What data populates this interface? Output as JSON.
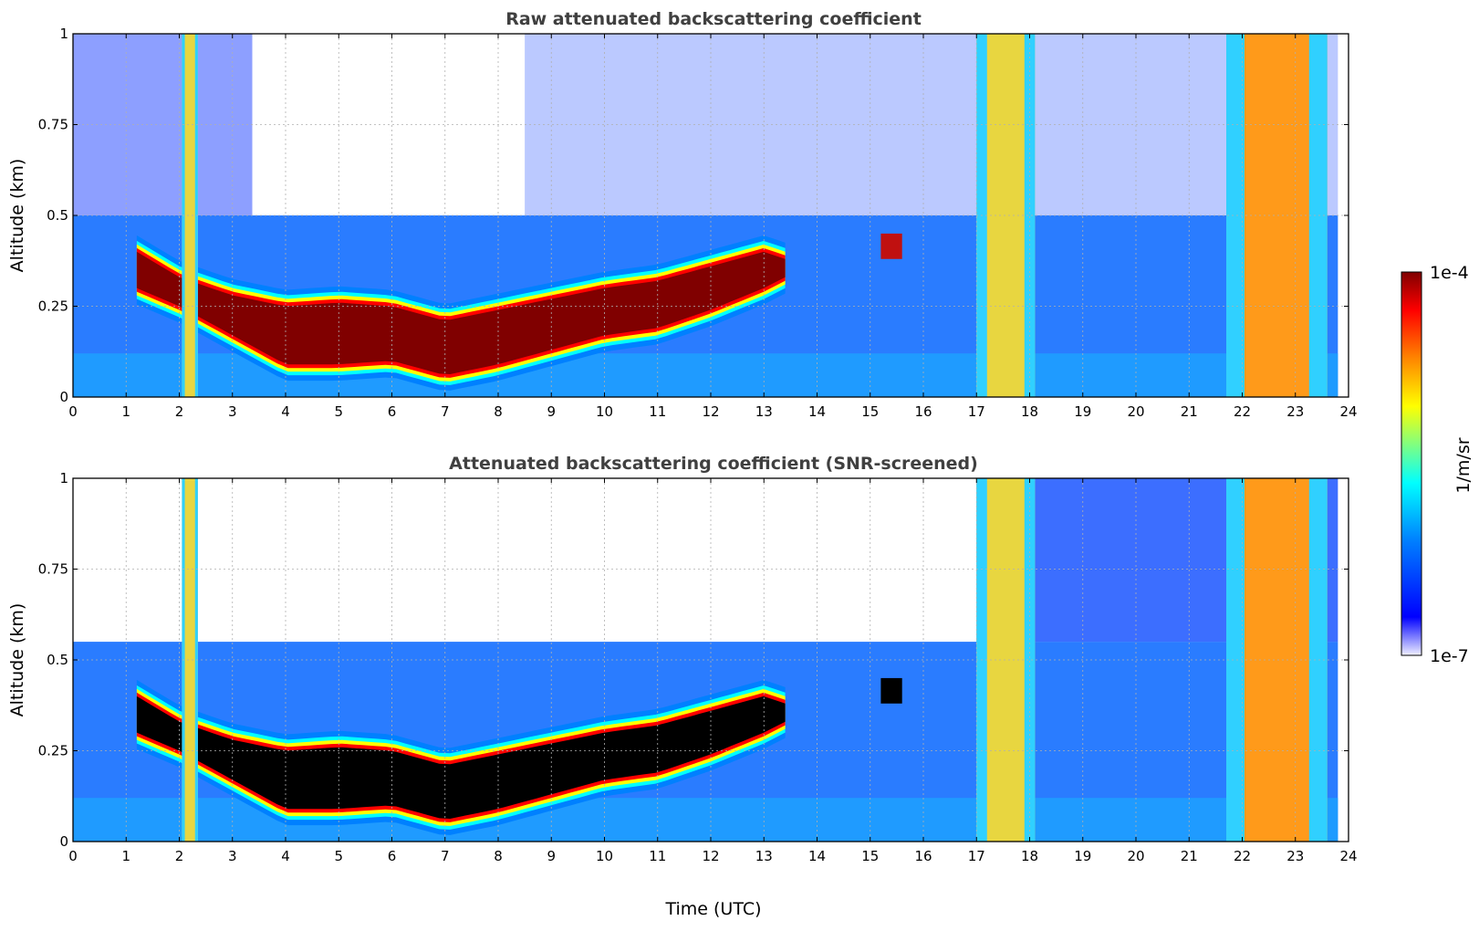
{
  "chart_data": [
    {
      "type": "heatmap",
      "title": "Raw attenuated backscattering coefficient",
      "ylabel": "Altitude (km)",
      "xlabel": "",
      "xlim": [
        0,
        24
      ],
      "ylim": [
        0,
        1
      ],
      "x_ticks": [
        "0",
        "1",
        "2",
        "3",
        "4",
        "5",
        "6",
        "7",
        "8",
        "9",
        "10",
        "11",
        "12",
        "13",
        "14",
        "15",
        "16",
        "17",
        "18",
        "19",
        "20",
        "21",
        "22",
        "23",
        "24"
      ],
      "y_ticks": [
        "0",
        "0.25",
        "0.5",
        "0.75",
        "1"
      ],
      "grid": true,
      "screened": false,
      "layer_altitude_km": {
        "time_utc": [
          1.2,
          2,
          3,
          4,
          5,
          6,
          7,
          8,
          9,
          10,
          11,
          12,
          13,
          13.4
        ],
        "top": [
          0.4,
          0.33,
          0.28,
          0.25,
          0.26,
          0.25,
          0.21,
          0.24,
          0.27,
          0.3,
          0.32,
          0.36,
          0.4,
          0.38
        ],
        "bottom": [
          0.3,
          0.25,
          0.17,
          0.09,
          0.09,
          0.1,
          0.06,
          0.09,
          0.13,
          0.17,
          0.19,
          0.24,
          0.3,
          0.33
        ]
      },
      "precipitation_bands_utc": [
        [
          2.05,
          2.35
        ],
        [
          17.0,
          18.1
        ],
        [
          21.7,
          23.6
        ]
      ],
      "elevated_patch": {
        "time_utc": [
          15.2,
          15.6
        ],
        "altitude_km": [
          0.38,
          0.45
        ]
      }
    },
    {
      "type": "heatmap",
      "title": "Attenuated backscattering coefficient (SNR-screened)",
      "ylabel": "Altitude (km)",
      "xlabel": "Time (UTC)",
      "xlim": [
        0,
        24
      ],
      "ylim": [
        0,
        1
      ],
      "x_ticks": [
        "0",
        "1",
        "2",
        "3",
        "4",
        "5",
        "6",
        "7",
        "8",
        "9",
        "10",
        "11",
        "12",
        "13",
        "14",
        "15",
        "16",
        "17",
        "18",
        "19",
        "20",
        "21",
        "22",
        "23",
        "24"
      ],
      "y_ticks": [
        "0",
        "0.25",
        "0.5",
        "0.75",
        "1"
      ],
      "grid": true,
      "screened": true,
      "layer_altitude_km": {
        "time_utc": [
          1.2,
          2,
          3,
          4,
          5,
          6,
          7,
          8,
          9,
          10,
          11,
          12,
          13,
          13.4
        ],
        "top": [
          0.4,
          0.33,
          0.28,
          0.25,
          0.26,
          0.25,
          0.21,
          0.24,
          0.27,
          0.3,
          0.32,
          0.36,
          0.4,
          0.38
        ],
        "bottom": [
          0.3,
          0.25,
          0.17,
          0.09,
          0.09,
          0.1,
          0.06,
          0.09,
          0.13,
          0.17,
          0.19,
          0.24,
          0.3,
          0.33
        ]
      },
      "precipitation_bands_utc": [
        [
          2.05,
          2.35
        ],
        [
          17.0,
          18.1
        ],
        [
          21.7,
          23.6
        ]
      ],
      "elevated_patch": {
        "time_utc": [
          15.2,
          15.6
        ],
        "altitude_km": [
          0.38,
          0.45
        ]
      }
    }
  ],
  "colorbar": {
    "label": "1/m/sr",
    "max_label": "1e-4",
    "min_label": "1e-7",
    "scale": "log",
    "colormap": [
      "#f0f0ff",
      "#0000ff",
      "#0080ff",
      "#00ffff",
      "#80ff80",
      "#ffff00",
      "#ff8000",
      "#ff0000",
      "#800000"
    ]
  },
  "colors": {
    "title_text": "#404040",
    "grid": "#b0b0b0",
    "saturated_screened": "#000000"
  }
}
